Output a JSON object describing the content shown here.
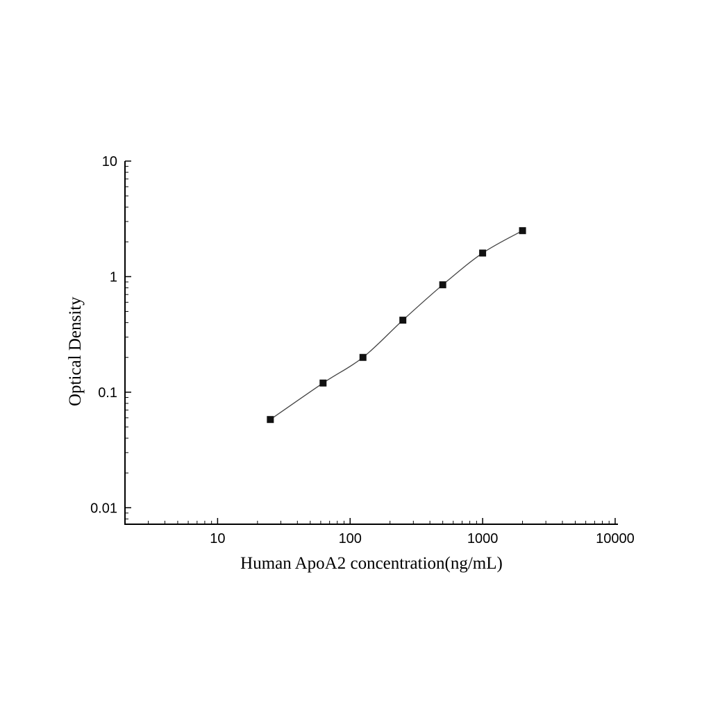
{
  "chart_data": {
    "type": "line",
    "title": "",
    "xlabel": "Human ApoA2 concentration(ng/mL)",
    "ylabel": "Optical Density",
    "x_scale": "log",
    "y_scale": "log",
    "x": [
      25,
      62.5,
      125,
      250,
      500,
      1000,
      2000
    ],
    "y": [
      0.058,
      0.12,
      0.2,
      0.42,
      0.85,
      1.6,
      2.5
    ],
    "x_ticks": [
      10,
      100,
      1000,
      10000
    ],
    "y_ticks": [
      0.01,
      0.1,
      1,
      10
    ],
    "xlim": [
      2,
      10500
    ],
    "ylim": [
      0.0072,
      10
    ],
    "grid": false,
    "legend": null,
    "marker": "filled-square",
    "marker_color": "#111111",
    "line_color": "#444444",
    "axis_color": "#000000"
  }
}
